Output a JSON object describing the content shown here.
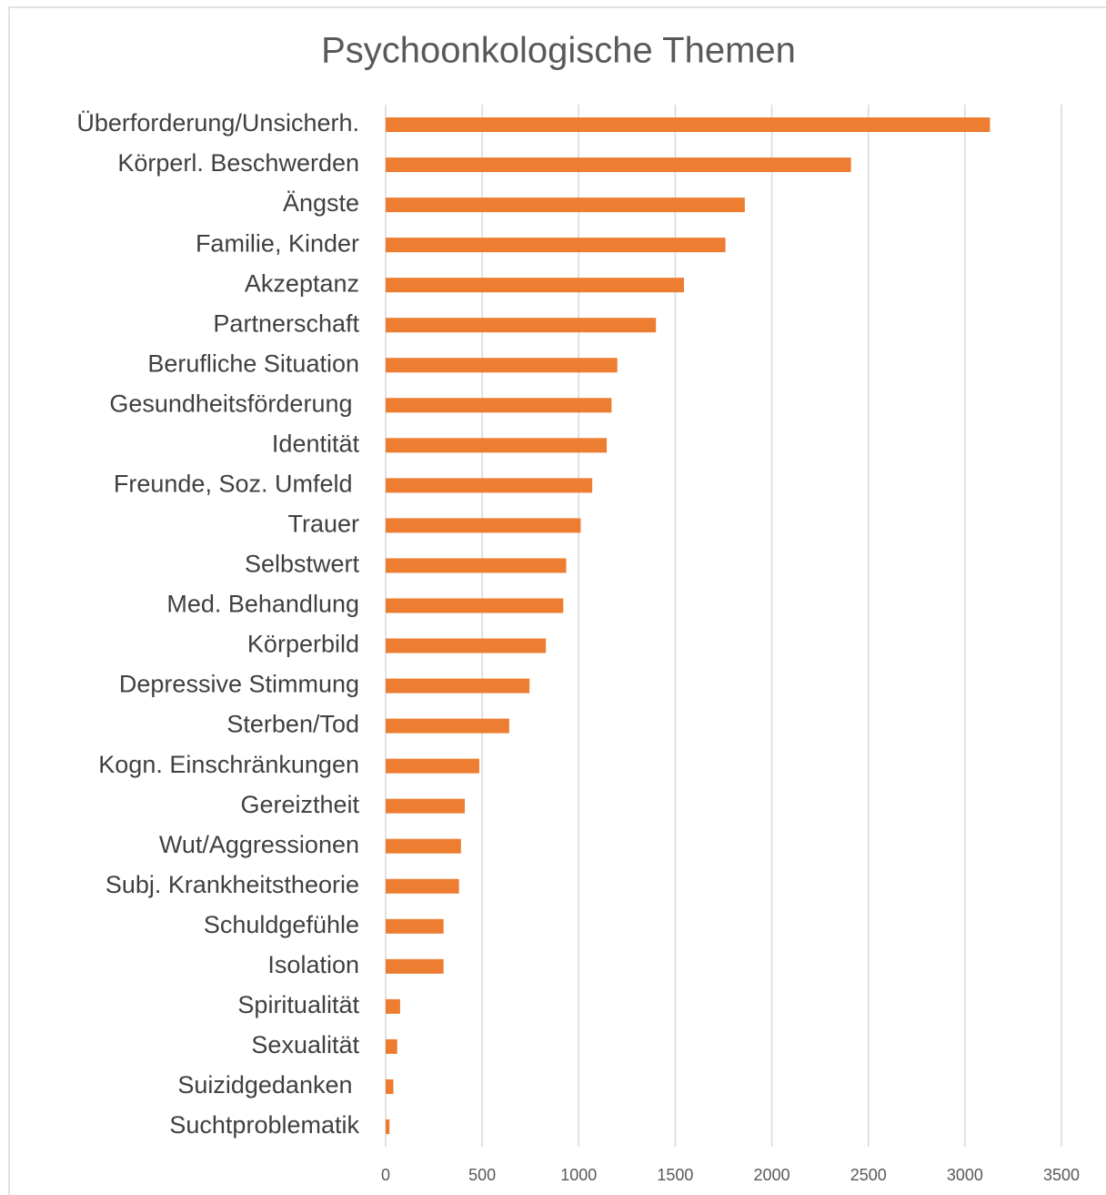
{
  "chart_data": {
    "type": "barh",
    "title": "Psychoonkologische Themen",
    "categories": [
      "Überforderung/Unsicherh.",
      "Körperl. Beschwerden",
      "Ängste",
      "Familie, Kinder",
      "Akzeptanz",
      "Partnerschaft",
      "Berufliche Situation",
      "Gesundheitsförderung ",
      "Identität",
      "Freunde, Soz. Umfeld ",
      "Trauer",
      "Selbstwert",
      "Med. Behandlung",
      "Körperbild",
      "Depressive Stimmung",
      "Sterben/Tod",
      "Kogn. Einschränkungen",
      "Gereiztheit",
      "Wut/Aggressionen",
      "Subj. Krankheitstheorie",
      "Schuldgefühle",
      "Isolation",
      "Spiritualität",
      "Sexualität",
      "Suizidgedanken ",
      "Suchtproblematik"
    ],
    "values": [
      3130,
      2410,
      1860,
      1760,
      1545,
      1400,
      1200,
      1170,
      1145,
      1070,
      1010,
      935,
      920,
      830,
      745,
      640,
      485,
      410,
      390,
      380,
      300,
      300,
      75,
      60,
      40,
      20
    ],
    "color": "#ed7d31",
    "xlim": [
      0,
      3500
    ],
    "xticks": [
      0,
      500,
      1000,
      1500,
      2000,
      2500,
      3000,
      3500
    ],
    "grid": true
  }
}
